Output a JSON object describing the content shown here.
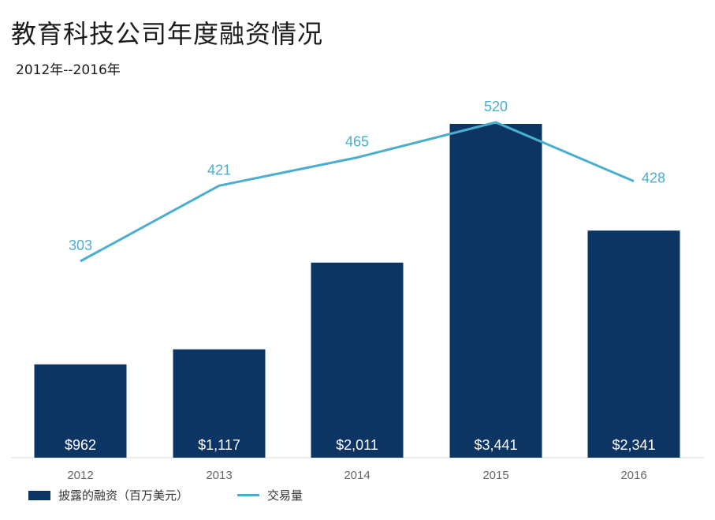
{
  "chart_data": {
    "type": "bar+line",
    "title": "教育科技公司年度融资情况",
    "subtitle": "2012年--2016年",
    "categories": [
      "2012",
      "2013",
      "2014",
      "2015",
      "2016"
    ],
    "series": [
      {
        "name": "披露的融资（百万美元）",
        "type": "bar",
        "values": [
          962,
          1117,
          2011,
          3441,
          2341
        ],
        "labels": [
          "$962",
          "$1,117",
          "$2,011",
          "$3,441",
          "$2,341"
        ],
        "color": "#0d3563"
      },
      {
        "name": "交易量",
        "type": "line",
        "values": [
          303,
          421,
          465,
          520,
          428
        ],
        "labels": [
          "303",
          "421",
          "465",
          "520",
          "428"
        ],
        "color": "#4aaed0"
      }
    ],
    "grid": false,
    "legend_position": "bottom-left"
  }
}
